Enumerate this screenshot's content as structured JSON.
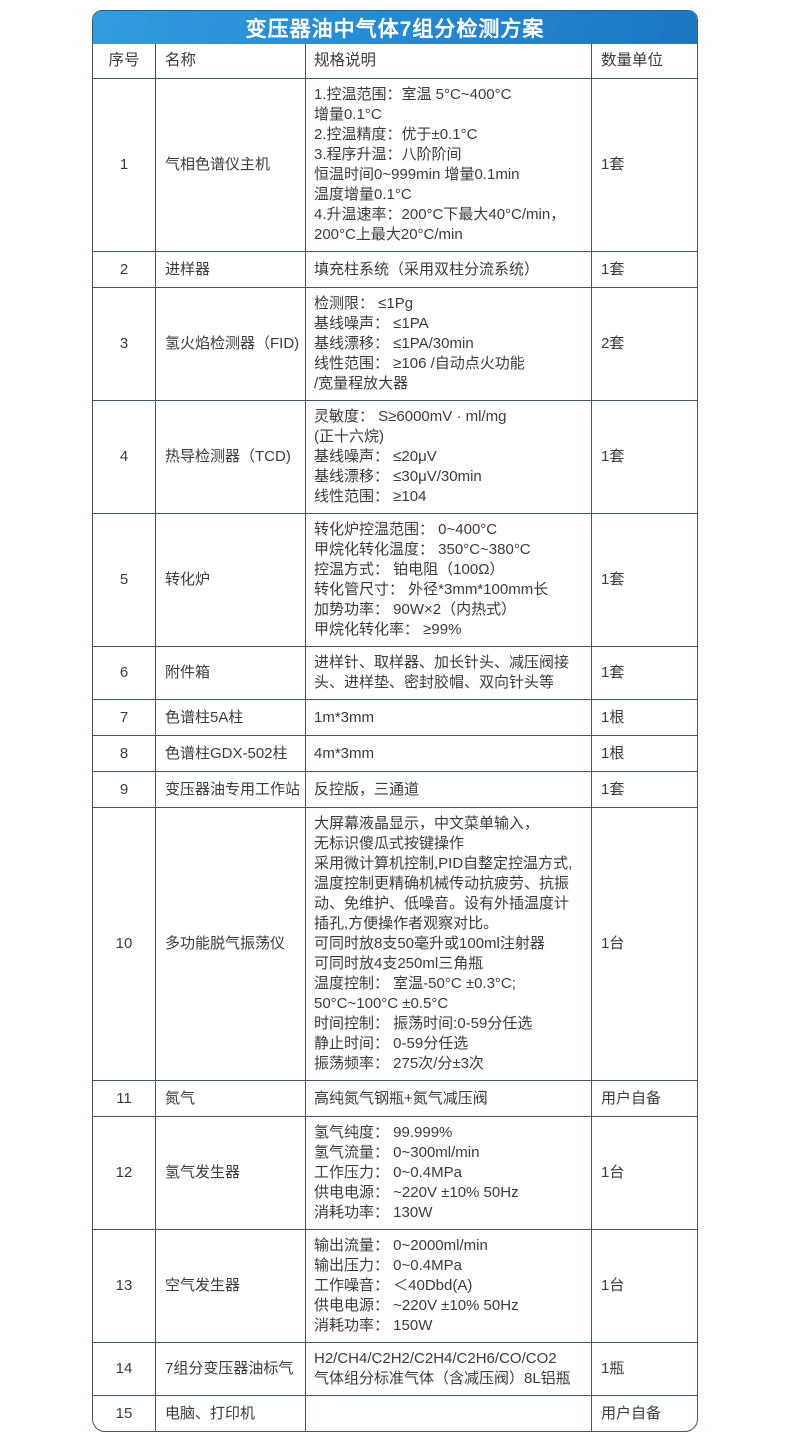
{
  "title": "变压器油中气体7组分检测方案",
  "colors": {
    "title_bar_blue_start": "#319cdf",
    "title_bar_blue_end": "#1b76c4",
    "grid_line": "#44586d",
    "text": "#3b3b3b",
    "title_text": "#ffffff"
  },
  "table": {
    "headers": {
      "no": "序号",
      "name": "名称",
      "spec": "规格说明",
      "qty": "数量单位"
    },
    "rows": [
      {
        "no": "1",
        "name": "气相色谱仪主机",
        "spec": "1.控温范围：室温 5°C~400°C\n增量0.1°C\n2.控温精度：优于±0.1°C\n3.程序升温：八阶阶间\n恒温时间0~999min 增量0.1min\n温度增量0.1°C\n4.升温速率：200°C下最大40°C/min，\n200°C上最大20°C/min",
        "qty": "1套"
      },
      {
        "no": "2",
        "name": "进样器",
        "spec": "填充柱系统（采用双柱分流系统）",
        "qty": "1套"
      },
      {
        "no": "3",
        "name": "氢火焰检测器（FID)",
        "spec": "检测限： ≤1Pg\n基线噪声： ≤1PA\n基线漂移： ≤1PA/30min\n线性范围： ≥106 /自动点火功能\n/宽量程放大器",
        "qty": "2套"
      },
      {
        "no": "4",
        "name": "热导检测器（TCD)",
        "spec": "灵敏度： S≥6000mV · ml/mg\n(正十六烷)\n基线噪声： ≤20μV\n基线漂移： ≤30μV/30min\n线性范围： ≥104",
        "qty": "1套"
      },
      {
        "no": "5",
        "name": "转化炉",
        "spec": "转化炉控温范围： 0~400°C\n甲烷化转化温度： 350°C~380°C\n控温方式： 铂电阻（100Ω）\n转化管尺寸： 外径*3mm*100mm长\n加势功率： 90W×2（内热式）\n甲烷化转化率： ≥99%",
        "qty": "1套"
      },
      {
        "no": "6",
        "name": "附件箱",
        "spec": "进样针、取样器、加长针头、减压阀接头、进样垫、密封胶帽、双向针头等",
        "qty": "1套"
      },
      {
        "no": "7",
        "name": "色谱柱5A柱",
        "spec": "1m*3mm",
        "qty": "1根"
      },
      {
        "no": "8",
        "name": "色谱柱GDX-502柱",
        "spec": "4m*3mm",
        "qty": "1根"
      },
      {
        "no": "9",
        "name": "变压器油专用工作站",
        "spec": "反控版，三通道",
        "qty": "1套"
      },
      {
        "no": "10",
        "name": "多功能脱气振荡仪",
        "spec": "大屏幕液晶显示，中文菜单输入，\n无标识傻瓜式按键操作\n采用微计算机控制,PID自整定控温方式,温度控制更精确机械传动抗疲劳、抗振动、免维护、低噪音。设有外插温度计插孔,方便操作者观察对比。\n可同时放8支50毫升或100ml注射器\n可同时放4支250ml三角瓶\n温度控制： 室温-50°C ±0.3°C;\n 50°C~100°C ±0.5°C\n时间控制： 振荡时间:0-59分任选\n静止时间： 0-59分任选\n振荡频率： 275次/分±3次",
        "qty": "1台"
      },
      {
        "no": "11",
        "name": "氮气",
        "spec": "高纯氮气钢瓶+氮气减压阀",
        "qty": "用户自备"
      },
      {
        "no": "12",
        "name": "氢气发生器",
        "spec": "氢气纯度： 99.999%\n氢气流量： 0~300ml/min\n工作压力： 0~0.4MPa\n供电电源： ~220V ±10% 50Hz\n消耗功率： 130W",
        "qty": "1台"
      },
      {
        "no": "13",
        "name": "空气发生器",
        "spec": "输出流量： 0~2000ml/min\n输出压力： 0~0.4MPa\n工作噪音： ＜40Dbd(A)\n供电电源： ~220V ±10% 50Hz\n消耗功率： 150W",
        "qty": "1台"
      },
      {
        "no": "14",
        "name": "7组分变压器油标气",
        "spec": "H2/CH4/C2H2/C2H4/C2H6/CO/CO2\n气体组分标准气体（含减压阀）8L铝瓶",
        "qty": "1瓶"
      },
      {
        "no": "15",
        "name": "电脑、打印机",
        "spec": "",
        "qty": "用户自备"
      }
    ]
  }
}
